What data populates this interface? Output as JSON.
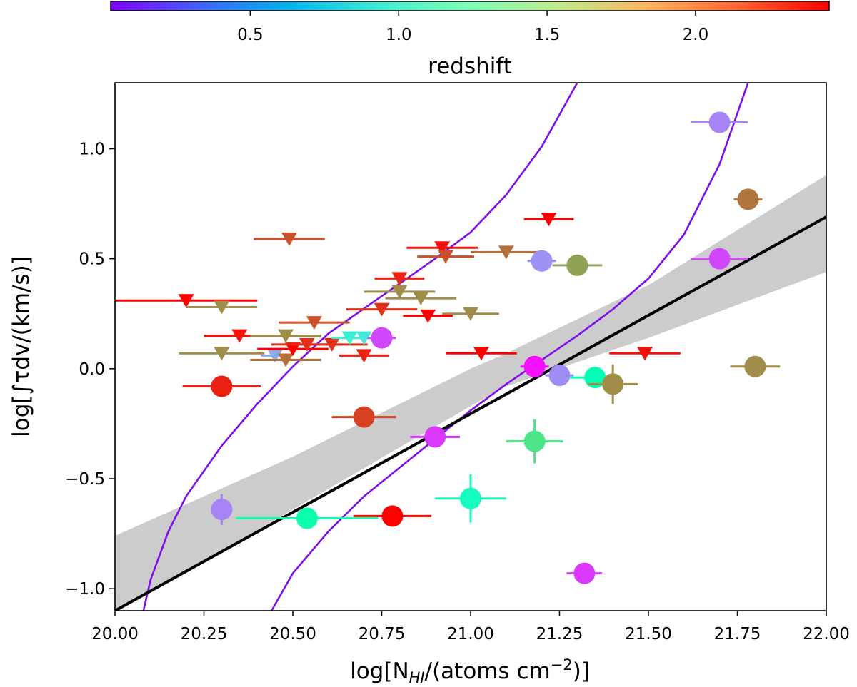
{
  "chart_data": {
    "type": "scatter",
    "xlabel": "log[N_HI/(atoms cm^-2)]",
    "ylabel": "log[∫τdv/(km/s)]",
    "xlim": [
      20.0,
      22.0
    ],
    "ylim": [
      -1.1,
      1.3
    ],
    "x_ticks": [
      20.0,
      20.25,
      20.5,
      20.75,
      21.0,
      21.25,
      21.5,
      21.75,
      22.0
    ],
    "x_tick_labels": [
      "20.00",
      "20.25",
      "20.50",
      "20.75",
      "21.00",
      "21.25",
      "21.50",
      "21.75",
      "22.00"
    ],
    "y_ticks": [
      -1.0,
      -0.5,
      0.0,
      0.5,
      1.0
    ],
    "y_tick_labels": [
      "−1.0",
      "−0.5",
      "0.0",
      "0.5",
      "1.0"
    ],
    "colorbar": {
      "label": "redshift",
      "range": [
        0.03,
        2.45
      ],
      "ticks": [
        0.5,
        1.0,
        1.5,
        2.0
      ],
      "tick_labels": [
        "0.5",
        "1.0",
        "1.5",
        "2.0"
      ],
      "colormap": "rainbow"
    },
    "fit_line": {
      "slope": 0.895,
      "intercept": -19.0,
      "color": "#000000"
    },
    "confidence_band": {
      "x": [
        20.0,
        20.5,
        21.0,
        21.1,
        21.5,
        22.0
      ],
      "lower": [
        -1.11,
        -0.64,
        -0.17,
        -0.08,
        0.14,
        0.44
      ],
      "upper": [
        -0.76,
        -0.4,
        0.0,
        0.07,
        0.38,
        0.88
      ],
      "color": "#cccccc"
    },
    "model_curves": [
      {
        "name": "left-curve",
        "color": "#7f0fea",
        "points": [
          [
            20.08,
            -1.1
          ],
          [
            20.1,
            -0.96
          ],
          [
            20.15,
            -0.74
          ],
          [
            20.2,
            -0.58
          ],
          [
            20.3,
            -0.35
          ],
          [
            20.4,
            -0.16
          ],
          [
            20.5,
            0.01
          ],
          [
            20.6,
            0.16
          ],
          [
            20.75,
            0.33
          ],
          [
            20.9,
            0.5
          ],
          [
            21.0,
            0.62
          ],
          [
            21.1,
            0.79
          ],
          [
            21.2,
            1.01
          ],
          [
            21.3,
            1.3
          ]
        ]
      },
      {
        "name": "right-curve",
        "color": "#7f0fea",
        "points": [
          [
            20.44,
            -1.1
          ],
          [
            20.5,
            -0.93
          ],
          [
            20.6,
            -0.74
          ],
          [
            20.7,
            -0.58
          ],
          [
            20.8,
            -0.45
          ],
          [
            20.9,
            -0.32
          ],
          [
            21.0,
            -0.19
          ],
          [
            21.1,
            -0.07
          ],
          [
            21.2,
            0.04
          ],
          [
            21.3,
            0.15
          ],
          [
            21.4,
            0.27
          ],
          [
            21.5,
            0.41
          ],
          [
            21.6,
            0.61
          ],
          [
            21.7,
            0.93
          ],
          [
            21.78,
            1.3
          ]
        ]
      }
    ],
    "detections": [
      {
        "x": 21.7,
        "y": 1.12,
        "xerr": 0.08,
        "yerr": 0.0,
        "z": 0.45
      },
      {
        "x": 21.78,
        "y": 0.77,
        "xerr": 0.04,
        "yerr": 0.0,
        "z": 2.08
      },
      {
        "x": 21.2,
        "y": 0.49,
        "xerr": 0.04,
        "yerr": 0.0,
        "z": 0.5
      },
      {
        "x": 21.3,
        "y": 0.47,
        "xerr": 0.07,
        "yerr": 0.0,
        "z": 1.92
      },
      {
        "x": 21.7,
        "y": 0.5,
        "xerr": 0.08,
        "yerr": 0.0,
        "z": 0.25
      },
      {
        "x": 20.75,
        "y": 0.14,
        "xerr": 0.04,
        "yerr": 0.0,
        "z": 0.25
      },
      {
        "x": 20.3,
        "y": -0.08,
        "xerr": 0.11,
        "yerr": 0.0,
        "z": 2.35
      },
      {
        "x": 21.18,
        "y": 0.01,
        "xerr": 0.04,
        "yerr": 0.0,
        "z": 0.08
      },
      {
        "x": 21.25,
        "y": -0.03,
        "xerr": 0.04,
        "yerr": 0.0,
        "z": 0.48
      },
      {
        "x": 21.35,
        "y": -0.04,
        "xerr": 0.07,
        "yerr": 0.0,
        "z": 1.25
      },
      {
        "x": 21.4,
        "y": -0.07,
        "xerr": 0.07,
        "yerr": 0.09,
        "z": 2.0
      },
      {
        "x": 21.8,
        "y": 0.01,
        "xerr": 0.07,
        "yerr": 0.0,
        "z": 2.0
      },
      {
        "x": 20.7,
        "y": -0.22,
        "xerr": 0.09,
        "yerr": 0.0,
        "z": 2.25
      },
      {
        "x": 20.9,
        "y": -0.31,
        "xerr": 0.07,
        "yerr": 0.0,
        "z": 0.2
      },
      {
        "x": 21.18,
        "y": -0.33,
        "xerr": 0.08,
        "yerr": 0.1,
        "z": 1.6
      },
      {
        "x": 20.3,
        "y": -0.64,
        "xerr": 0.03,
        "yerr": 0.07,
        "z": 0.45
      },
      {
        "x": 20.54,
        "y": -0.68,
        "xerr": 0.2,
        "yerr": 0.0,
        "z": 1.3
      },
      {
        "x": 20.78,
        "y": -0.67,
        "xerr": 0.11,
        "yerr": 0.04,
        "z": 2.45
      },
      {
        "x": 21.0,
        "y": -0.59,
        "xerr": 0.1,
        "yerr": 0.11,
        "z": 1.15
      },
      {
        "x": 21.32,
        "y": -0.93,
        "xerr": 0.05,
        "yerr": 0.0,
        "z": 0.2
      }
    ],
    "upper_limits": [
      {
        "x": 20.49,
        "y": 0.59,
        "xerr": 0.1,
        "z": 2.2
      },
      {
        "x": 20.2,
        "y": 0.31,
        "xerr": 0.2,
        "z": 2.45
      },
      {
        "x": 20.3,
        "y": 0.28,
        "xerr": 0.1,
        "z": 2.0
      },
      {
        "x": 20.35,
        "y": 0.15,
        "xerr": 0.1,
        "z": 2.4
      },
      {
        "x": 20.3,
        "y": 0.07,
        "xerr": 0.12,
        "z": 2.0
      },
      {
        "x": 20.45,
        "y": 0.06,
        "xerr": 0.04,
        "z": 0.6
      },
      {
        "x": 20.48,
        "y": 0.04,
        "xerr": 0.1,
        "z": 2.1
      },
      {
        "x": 20.5,
        "y": 0.09,
        "xerr": 0.1,
        "z": 2.45
      },
      {
        "x": 20.48,
        "y": 0.15,
        "xerr": 0.1,
        "z": 2.0
      },
      {
        "x": 20.54,
        "y": 0.11,
        "xerr": 0.1,
        "z": 2.3
      },
      {
        "x": 20.56,
        "y": 0.21,
        "xerr": 0.1,
        "z": 2.2
      },
      {
        "x": 20.61,
        "y": 0.11,
        "xerr": 0.1,
        "z": 2.3
      },
      {
        "x": 20.66,
        "y": 0.14,
        "xerr": 0.05,
        "z": 1.0
      },
      {
        "x": 20.7,
        "y": 0.14,
        "xerr": 0.06,
        "z": 0.9
      },
      {
        "x": 20.7,
        "y": 0.06,
        "xerr": 0.07,
        "z": 2.35
      },
      {
        "x": 20.75,
        "y": 0.27,
        "xerr": 0.1,
        "z": 2.3
      },
      {
        "x": 20.8,
        "y": 0.41,
        "xerr": 0.07,
        "z": 2.35
      },
      {
        "x": 20.8,
        "y": 0.35,
        "xerr": 0.1,
        "z": 2.0
      },
      {
        "x": 20.86,
        "y": 0.32,
        "xerr": 0.1,
        "z": 2.0
      },
      {
        "x": 20.88,
        "y": 0.24,
        "xerr": 0.07,
        "z": 2.45
      },
      {
        "x": 20.92,
        "y": 0.55,
        "xerr": 0.1,
        "z": 2.4
      },
      {
        "x": 20.93,
        "y": 0.51,
        "xerr": 0.08,
        "z": 2.2
      },
      {
        "x": 21.0,
        "y": 0.25,
        "xerr": 0.08,
        "z": 2.0
      },
      {
        "x": 21.03,
        "y": 0.07,
        "xerr": 0.1,
        "z": 2.45
      },
      {
        "x": 21.1,
        "y": 0.53,
        "xerr": 0.1,
        "z": 2.1
      },
      {
        "x": 21.22,
        "y": 0.68,
        "xerr": 0.07,
        "z": 2.45
      },
      {
        "x": 21.49,
        "y": 0.07,
        "xerr": 0.1,
        "z": 2.4
      }
    ]
  }
}
